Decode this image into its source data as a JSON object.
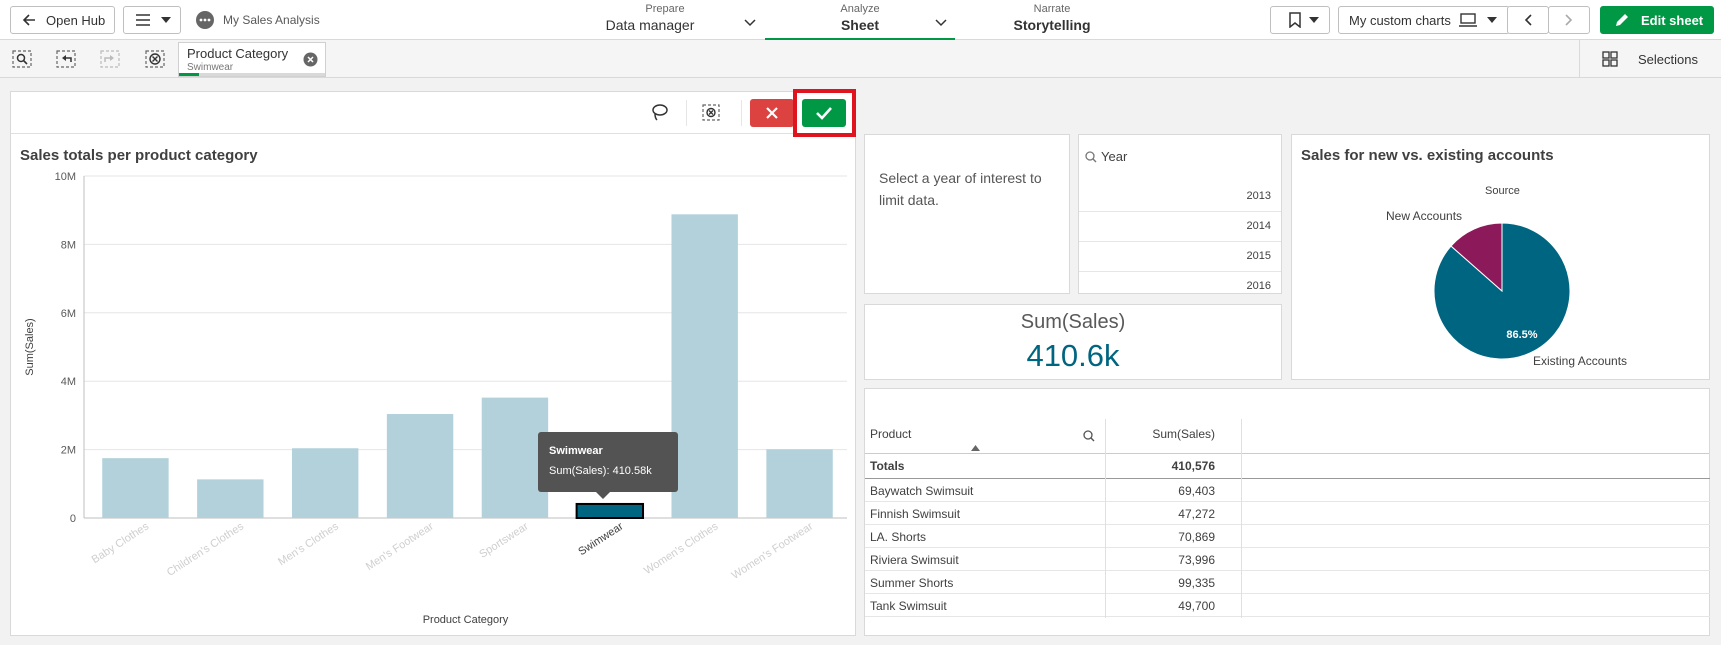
{
  "topbar": {
    "open_hub": "Open Hub",
    "app_title": "My Sales Analysis",
    "prepare_label": "Prepare",
    "prepare_value": "Data manager",
    "analyze_label": "Analyze",
    "analyze_value": "Sheet",
    "narrate_label": "Narrate",
    "narrate_value": "Storytelling",
    "custom_charts": "My custom charts",
    "edit_sheet": "Edit sheet"
  },
  "selbar": {
    "chip_title": "Product Category",
    "chip_value": "Swimwear",
    "selections": "Selections"
  },
  "bar_chart": {
    "title": "Sales totals per product category",
    "tooltip_title": "Swimwear",
    "tooltip_value": "Sum(Sales): 410.58k"
  },
  "chart_data": [
    {
      "type": "bar",
      "title": "Sales totals per product category",
      "xlabel": "Product Category",
      "ylabel": "Sum(Sales)",
      "ylim": [
        0,
        10000000
      ],
      "yticks": [
        "0",
        "2M",
        "4M",
        "6M",
        "8M",
        "10M"
      ],
      "categories": [
        "Baby Clothes",
        "Children's Clothes",
        "Men's Clothes",
        "Men's Footwear",
        "Sportswear",
        "Swimwear",
        "Women's Clothes",
        "Women's Footwear"
      ],
      "values": [
        1750000,
        1130000,
        2040000,
        3040000,
        3520000,
        410580,
        8880000,
        2010000
      ],
      "selected": "Swimwear",
      "colors": {
        "bar": "#b3d1db",
        "selected": "#006580"
      },
      "grid": true
    },
    {
      "type": "pie",
      "title": "Sales for new vs. existing accounts",
      "legend_title": "Source",
      "categories": [
        "Existing Accounts",
        "New Accounts"
      ],
      "values": [
        86.5,
        13.5
      ],
      "data_labels": [
        "86.5%"
      ],
      "colors": [
        "#006580",
        "#8c1a5a"
      ]
    }
  ],
  "text_panel": {
    "text": "Select a year of interest to limit data."
  },
  "year_filter": {
    "title": "Year",
    "years": [
      "2013",
      "2014",
      "2015",
      "2016"
    ]
  },
  "kpi": {
    "label": "Sum(Sales)",
    "value": "410.6k",
    "color": "#006580"
  },
  "pie_chart": {
    "title": "Sales for new vs. existing accounts",
    "legend_title": "Source",
    "new_label": "New Accounts",
    "existing_label": "Existing Accounts",
    "pct_label": "86.5%"
  },
  "table": {
    "headers": [
      "Product",
      "Sum(Sales)"
    ],
    "totals_label": "Totals",
    "totals_value": "410,576",
    "rows": [
      {
        "product": "Baywatch Swimsuit",
        "sales": "69,403"
      },
      {
        "product": "Finnish Swimsuit",
        "sales": "47,272"
      },
      {
        "product": "LA. Shorts",
        "sales": "70,869"
      },
      {
        "product": "Riviera Swimsuit",
        "sales": "73,996"
      },
      {
        "product": "Summer Shorts",
        "sales": "99,335"
      },
      {
        "product": "Tank Swimsuit",
        "sales": "49,700"
      }
    ]
  }
}
